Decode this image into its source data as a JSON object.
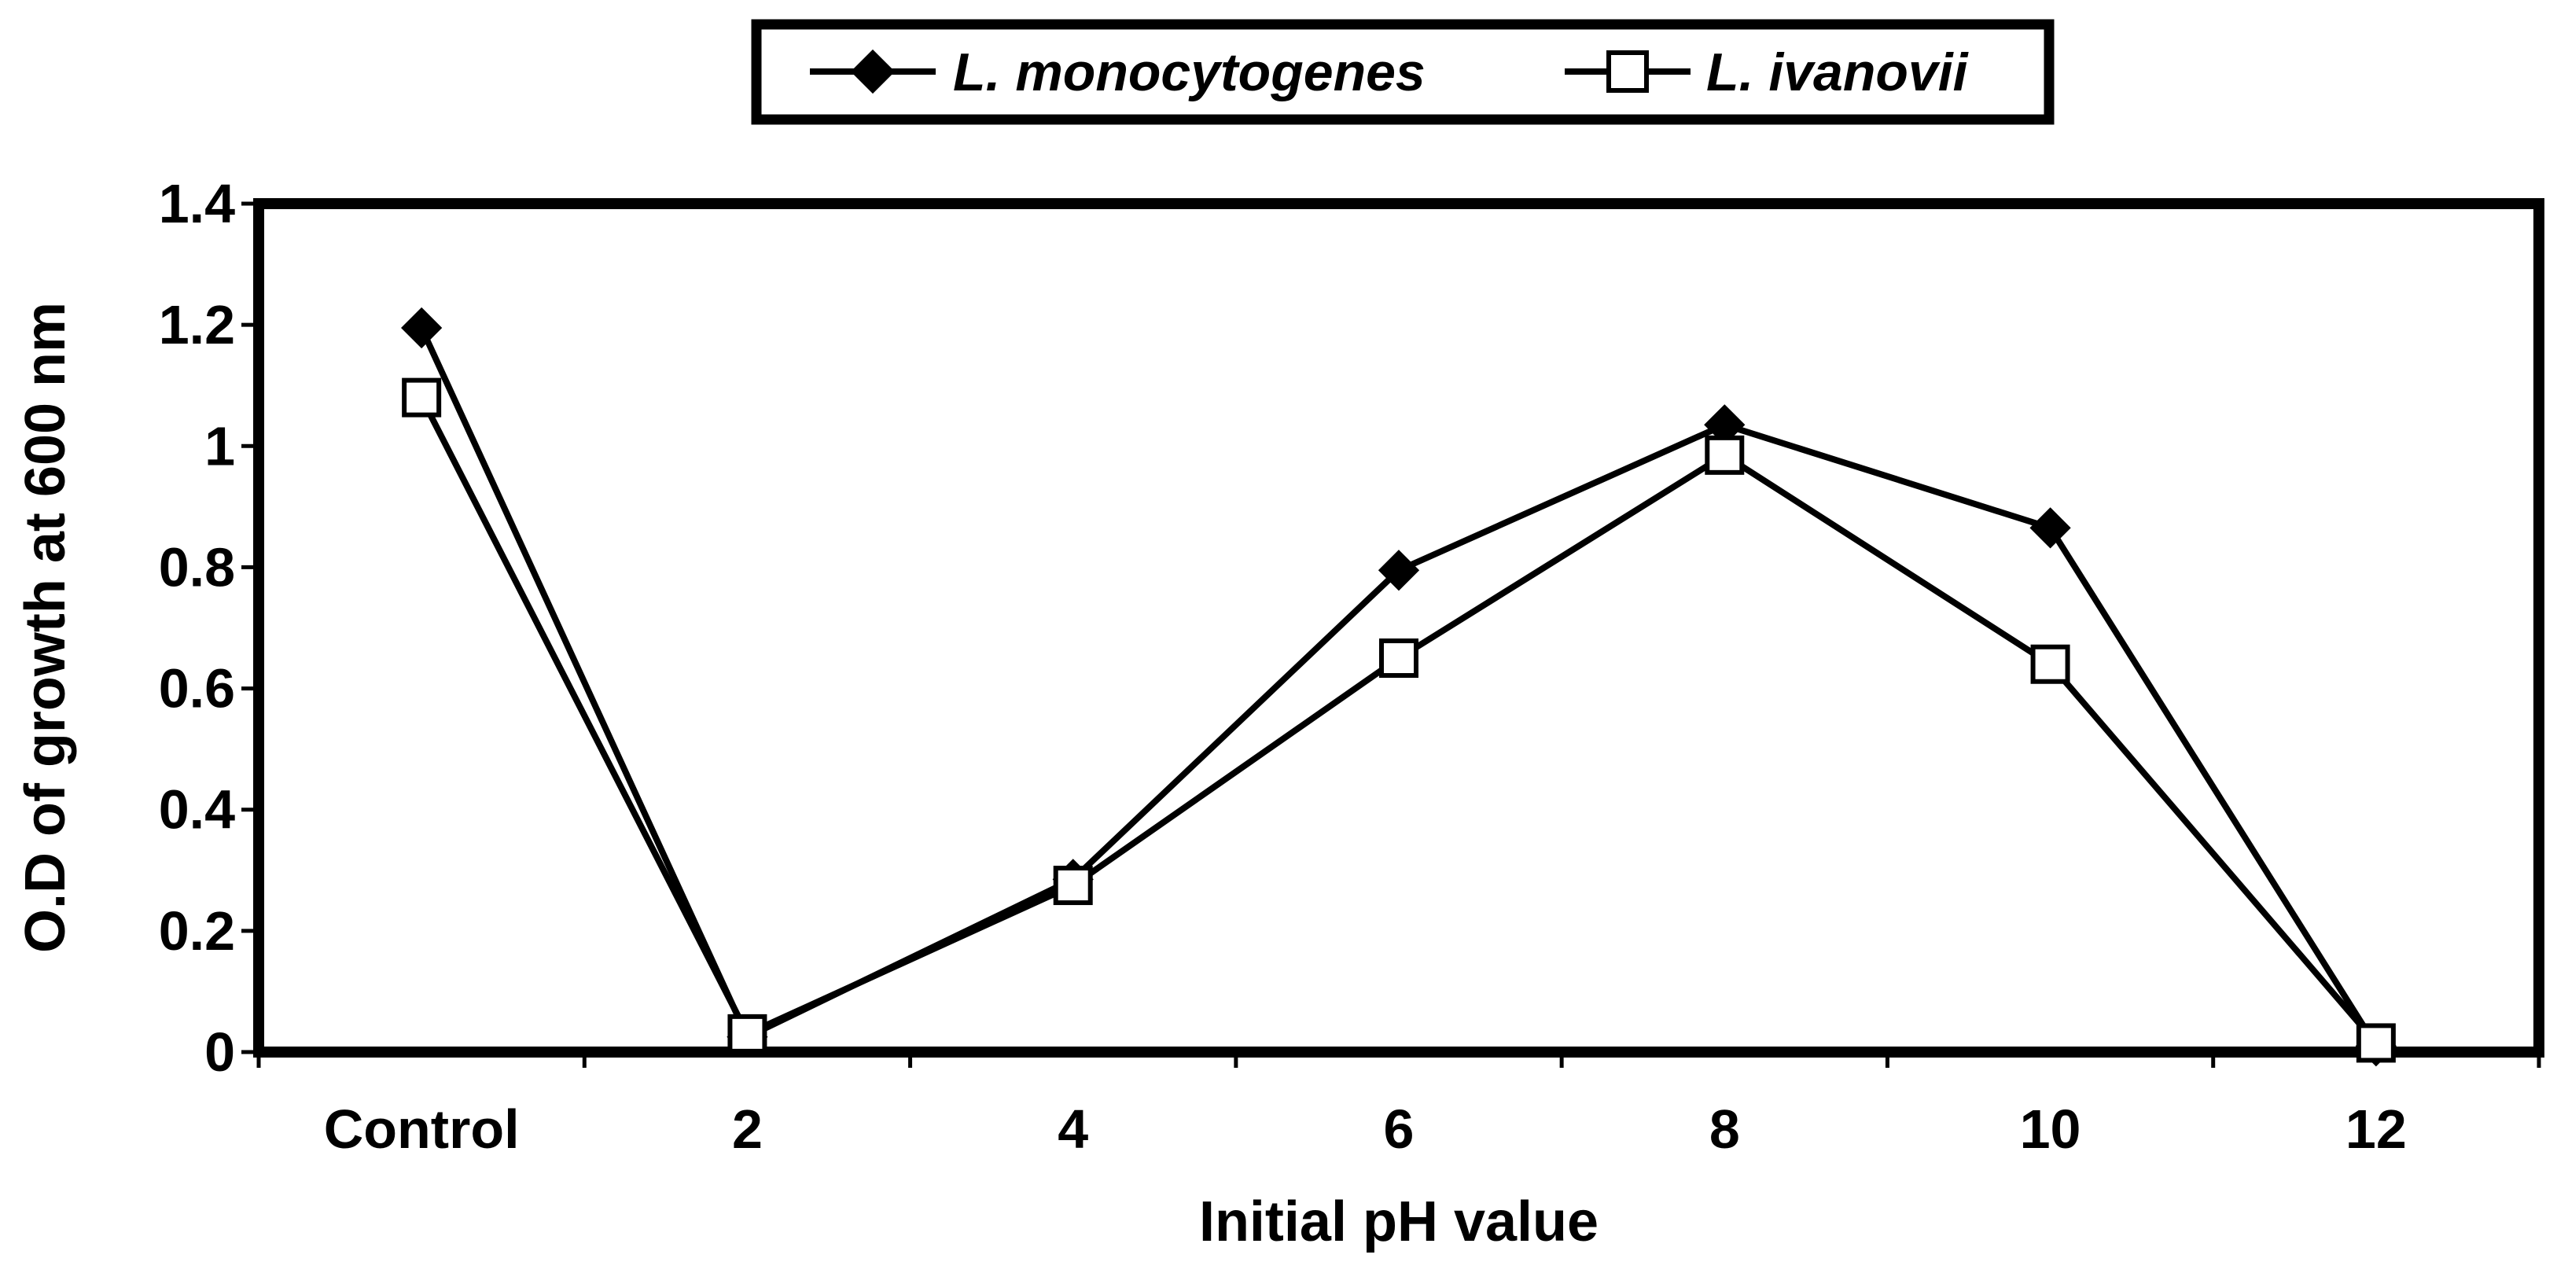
{
  "chart_data": {
    "type": "line",
    "title": "",
    "xlabel": "Initial pH value",
    "ylabel": "O.D of growth at 600 nm",
    "categories": [
      "Control",
      "2",
      "4",
      "6",
      "8",
      "10",
      "12"
    ],
    "ylim": [
      0,
      1.4
    ],
    "yticks": [
      "0",
      "0.2",
      "0.4",
      "0.6",
      "0.8",
      "1",
      "1.2",
      "1.4"
    ],
    "grid": false,
    "legend_position": "top-center",
    "series": [
      {
        "name": "L. monocytogenes",
        "marker": "filled-diamond",
        "color": "#000000",
        "values": [
          1.195,
          0.025,
          0.285,
          0.795,
          1.035,
          0.865,
          0.01
        ]
      },
      {
        "name": "L. ivanovii",
        "marker": "open-square",
        "color": "#000000",
        "values": [
          1.08,
          0.03,
          0.275,
          0.65,
          0.985,
          0.64,
          0.015
        ]
      }
    ]
  }
}
